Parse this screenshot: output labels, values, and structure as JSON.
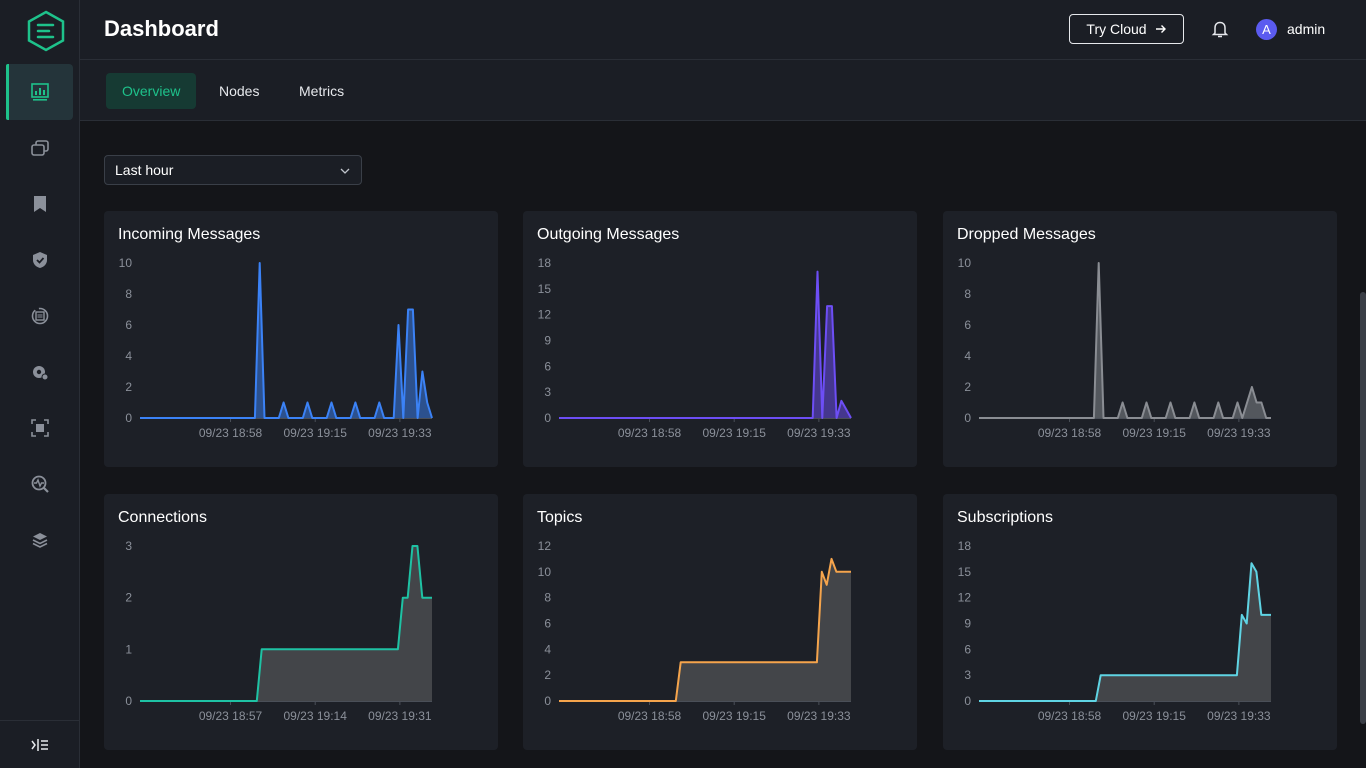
{
  "header": {
    "title": "Dashboard",
    "try_cloud_label": "Try Cloud",
    "user_initial": "A",
    "username": "admin"
  },
  "tabs": [
    {
      "label": "Overview",
      "active": true
    },
    {
      "label": "Nodes",
      "active": false
    },
    {
      "label": "Metrics",
      "active": false
    }
  ],
  "time_range": {
    "selected": "Last hour"
  },
  "sidebar": {
    "items": [
      {
        "icon": "dashboard-icon",
        "active": true
      },
      {
        "icon": "connections-icon"
      },
      {
        "icon": "subscriptions-icon"
      },
      {
        "icon": "access-control-icon"
      },
      {
        "icon": "integration-icon"
      },
      {
        "icon": "management-icon"
      },
      {
        "icon": "extensions-icon"
      },
      {
        "icon": "diagnose-icon"
      },
      {
        "icon": "system-icon"
      }
    ]
  },
  "colors": {
    "accent": "#1ec28b",
    "incoming": "#3b82f6",
    "outgoing": "#6d4ef5",
    "dropped": "#8a8d93",
    "connections": "#1ec2a4",
    "topics": "#f5a44c",
    "subscriptions": "#5fd4e4"
  },
  "chart_data": [
    {
      "type": "line",
      "title": "Incoming Messages",
      "y_ticks": [
        "10",
        "8",
        "6",
        "4",
        "2",
        "0"
      ],
      "ylim": [
        0,
        10
      ],
      "x_ticks": [
        "09/23 18:58",
        "09/23 19:15",
        "09/23 19:33"
      ],
      "values": [
        0,
        0,
        0,
        0,
        0,
        0,
        0,
        0,
        0,
        0,
        0,
        0,
        0,
        0,
        0,
        0,
        0,
        0,
        0,
        0,
        0,
        0,
        0,
        0,
        0,
        10,
        0,
        0,
        0,
        0,
        1,
        0,
        0,
        0,
        0,
        1,
        0,
        0,
        0,
        0,
        1,
        0,
        0,
        0,
        0,
        1,
        0,
        0,
        0,
        0,
        1,
        0,
        0,
        0,
        6,
        0,
        7,
        7,
        0,
        3,
        1,
        0
      ]
    },
    {
      "type": "line",
      "title": "Outgoing Messages",
      "y_ticks": [
        "18",
        "15",
        "12",
        "9",
        "6",
        "3",
        "0"
      ],
      "ylim": [
        0,
        18
      ],
      "x_ticks": [
        "09/23 18:58",
        "09/23 19:15",
        "09/23 19:33"
      ],
      "values": [
        0,
        0,
        0,
        0,
        0,
        0,
        0,
        0,
        0,
        0,
        0,
        0,
        0,
        0,
        0,
        0,
        0,
        0,
        0,
        0,
        0,
        0,
        0,
        0,
        0,
        0,
        0,
        0,
        0,
        0,
        0,
        0,
        0,
        0,
        0,
        0,
        0,
        0,
        0,
        0,
        0,
        0,
        0,
        0,
        0,
        0,
        0,
        0,
        0,
        0,
        0,
        0,
        0,
        0,
        17,
        0,
        13,
        13,
        0,
        2,
        1,
        0
      ]
    },
    {
      "type": "line",
      "title": "Dropped Messages",
      "y_ticks": [
        "10",
        "8",
        "6",
        "4",
        "2",
        "0"
      ],
      "ylim": [
        0,
        10
      ],
      "x_ticks": [
        "09/23 18:58",
        "09/23 19:15",
        "09/23 19:33"
      ],
      "values": [
        0,
        0,
        0,
        0,
        0,
        0,
        0,
        0,
        0,
        0,
        0,
        0,
        0,
        0,
        0,
        0,
        0,
        0,
        0,
        0,
        0,
        0,
        0,
        0,
        0,
        10,
        0,
        0,
        0,
        0,
        1,
        0,
        0,
        0,
        0,
        1,
        0,
        0,
        0,
        0,
        1,
        0,
        0,
        0,
        0,
        1,
        0,
        0,
        0,
        0,
        1,
        0,
        0,
        0,
        1,
        0,
        1,
        2,
        1,
        1,
        0,
        0
      ]
    },
    {
      "type": "area",
      "title": "Connections",
      "y_ticks": [
        "3",
        "2",
        "1",
        "0"
      ],
      "ylim": [
        0,
        3
      ],
      "x_ticks": [
        "09/23 18:57",
        "09/23 19:14",
        "09/23 19:31"
      ],
      "values": [
        0,
        0,
        0,
        0,
        0,
        0,
        0,
        0,
        0,
        0,
        0,
        0,
        0,
        0,
        0,
        0,
        0,
        0,
        0,
        0,
        0,
        0,
        0,
        0,
        0,
        1,
        1,
        1,
        1,
        1,
        1,
        1,
        1,
        1,
        1,
        1,
        1,
        1,
        1,
        1,
        1,
        1,
        1,
        1,
        1,
        1,
        1,
        1,
        1,
        1,
        1,
        1,
        1,
        1,
        2,
        2,
        3,
        3,
        2,
        2,
        2
      ]
    },
    {
      "type": "area",
      "title": "Topics",
      "y_ticks": [
        "12",
        "10",
        "8",
        "6",
        "4",
        "2",
        "0"
      ],
      "ylim": [
        0,
        12
      ],
      "x_ticks": [
        "09/23 18:58",
        "09/23 19:15",
        "09/23 19:33"
      ],
      "values": [
        0,
        0,
        0,
        0,
        0,
        0,
        0,
        0,
        0,
        0,
        0,
        0,
        0,
        0,
        0,
        0,
        0,
        0,
        0,
        0,
        0,
        0,
        0,
        0,
        0,
        3,
        3,
        3,
        3,
        3,
        3,
        3,
        3,
        3,
        3,
        3,
        3,
        3,
        3,
        3,
        3,
        3,
        3,
        3,
        3,
        3,
        3,
        3,
        3,
        3,
        3,
        3,
        3,
        3,
        10,
        9,
        11,
        10,
        10,
        10,
        10
      ]
    },
    {
      "type": "area",
      "title": "Subscriptions",
      "y_ticks": [
        "18",
        "15",
        "12",
        "9",
        "6",
        "3",
        "0"
      ],
      "ylim": [
        0,
        18
      ],
      "x_ticks": [
        "09/23 18:58",
        "09/23 19:15",
        "09/23 19:33"
      ],
      "values": [
        0,
        0,
        0,
        0,
        0,
        0,
        0,
        0,
        0,
        0,
        0,
        0,
        0,
        0,
        0,
        0,
        0,
        0,
        0,
        0,
        0,
        0,
        0,
        0,
        0,
        3,
        3,
        3,
        3,
        3,
        3,
        3,
        3,
        3,
        3,
        3,
        3,
        3,
        3,
        3,
        3,
        3,
        3,
        3,
        3,
        3,
        3,
        3,
        3,
        3,
        3,
        3,
        3,
        3,
        10,
        9,
        16,
        15,
        10,
        10,
        10
      ]
    }
  ]
}
